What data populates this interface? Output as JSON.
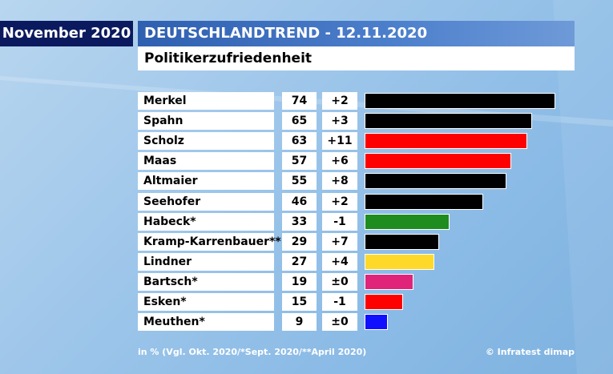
{
  "header": {
    "month": "November 2020",
    "title": "DEUTSCHLANDTREND - 12.11.2020",
    "subtitle": "Politikerzufriedenheit"
  },
  "footer": {
    "note": "in % (Vgl. Okt. 2020/*Sept. 2020/**April 2020)",
    "credit": "© Infratest dimap"
  },
  "chart_data": {
    "type": "bar",
    "orientation": "horizontal",
    "title": "Politikerzufriedenheit",
    "xlabel": "",
    "ylabel": "",
    "unit": "%",
    "xlim": [
      0,
      74
    ],
    "grid": false,
    "legend": "none",
    "categories": [
      "Merkel",
      "Spahn",
      "Scholz",
      "Maas",
      "Altmaier",
      "Seehofer",
      "Habeck*",
      "Kramp-Karrenbauer**",
      "Lindner",
      "Bartsch*",
      "Esken*",
      "Meuthen*"
    ],
    "values": [
      74,
      65,
      63,
      57,
      55,
      46,
      33,
      29,
      27,
      19,
      15,
      9
    ],
    "changes": [
      "+2",
      "+3",
      "+11",
      "+6",
      "+8",
      "+2",
      "-1",
      "+7",
      "+4",
      "±0",
      "-1",
      "±0"
    ],
    "colors": [
      "#000000",
      "#000000",
      "#ff0000",
      "#ff0000",
      "#000000",
      "#000000",
      "#1e8c1e",
      "#000000",
      "#ffd92a",
      "#e0247a",
      "#ff0000",
      "#1010ff"
    ]
  }
}
